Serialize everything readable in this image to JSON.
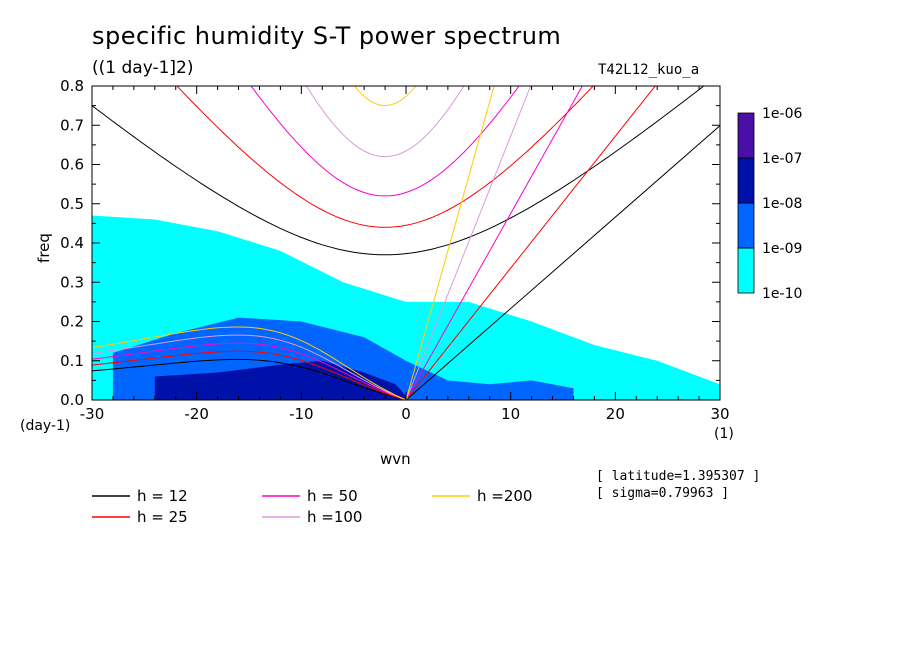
{
  "title": "specific humidity S-T power spectrum",
  "subtitle": "((1 day-1]2)",
  "run_id": "T42L12_kuo_a",
  "meta": {
    "latitude": "[ latitude=1.395307 ]",
    "sigma": "[ sigma=0.79963 ]"
  },
  "chart_data": {
    "type": "heatmap",
    "xlabel": "wvn",
    "ylabel": "freq",
    "x_unit": "(1)",
    "y_unit": "(day-1)",
    "xlim": [
      -30,
      30
    ],
    "ylim": [
      0,
      0.8
    ],
    "x_ticks": [
      -30,
      -20,
      -10,
      0,
      10,
      20,
      30
    ],
    "x_tick_labels": [
      "-30",
      "-20",
      "-10",
      "0",
      "10",
      "20",
      "30"
    ],
    "y_ticks": [
      0.0,
      0.1,
      0.2,
      0.3,
      0.4,
      0.5,
      0.6,
      0.7,
      0.8
    ],
    "y_tick_labels": [
      "0.0",
      "0.1",
      "0.2",
      "0.3",
      "0.4",
      "0.5",
      "0.6",
      "0.7",
      "0.8"
    ],
    "colorbar": {
      "levels": [
        "1e-10",
        "1e-09",
        "1e-08",
        "1e-07",
        "1e-06"
      ],
      "colors": [
        "#00ffff",
        "#0066ff",
        "#0011aa",
        "#4b0fa8"
      ]
    },
    "shaded_regions": [
      {
        "level": "1e-10",
        "color": "#00ffff",
        "x": [
          -30,
          -24,
          -18,
          -12,
          -6,
          0,
          6,
          12,
          18,
          24,
          30
        ],
        "y_top": [
          0.47,
          0.46,
          0.43,
          0.38,
          0.3,
          0.25,
          0.25,
          0.2,
          0.14,
          0.1,
          0.04
        ]
      },
      {
        "level": "1e-09",
        "color": "#0066ff",
        "x": [
          -28,
          -22,
          -16,
          -10,
          -4,
          0,
          4,
          8,
          12,
          16
        ],
        "y_top": [
          0.12,
          0.17,
          0.21,
          0.2,
          0.16,
          0.1,
          0.05,
          0.04,
          0.05,
          0.03
        ]
      },
      {
        "level": "1e-08",
        "color": "#0011aa",
        "x": [
          -24,
          -18,
          -12,
          -8,
          -4,
          -1,
          0
        ],
        "y_top": [
          0.06,
          0.07,
          0.09,
          0.1,
          0.07,
          0.04,
          0.01
        ]
      }
    ],
    "dispersion_curves": [
      {
        "name": "h = 12",
        "color": "#000000",
        "families": [
          "eastward_gravity",
          "westward_gravity",
          "rossby",
          "kelvin"
        ],
        "min_freq_gravity": 0.37,
        "kelvin_slope": 0.0233
      },
      {
        "name": "h = 25",
        "color": "#ff0000",
        "min_freq_gravity": 0.44,
        "kelvin_slope": 0.0336
      },
      {
        "name": "h = 50",
        "color": "#ff00cc",
        "min_freq_gravity": 0.52,
        "kelvin_slope": 0.0475
      },
      {
        "name": "h =100",
        "color": "#dd99dd",
        "min_freq_gravity": 0.62,
        "kelvin_slope": 0.0672
      },
      {
        "name": "h =200",
        "color": "#ffcc00",
        "min_freq_gravity": 0.75,
        "kelvin_slope": 0.095
      }
    ],
    "legend": [
      {
        "label": "h = 12",
        "color": "#000000"
      },
      {
        "label": "h = 25",
        "color": "#ff0000"
      },
      {
        "label": "h = 50",
        "color": "#ff00cc"
      },
      {
        "label": "h =100",
        "color": "#dd99dd"
      },
      {
        "label": "h =200",
        "color": "#ffcc00"
      }
    ]
  }
}
